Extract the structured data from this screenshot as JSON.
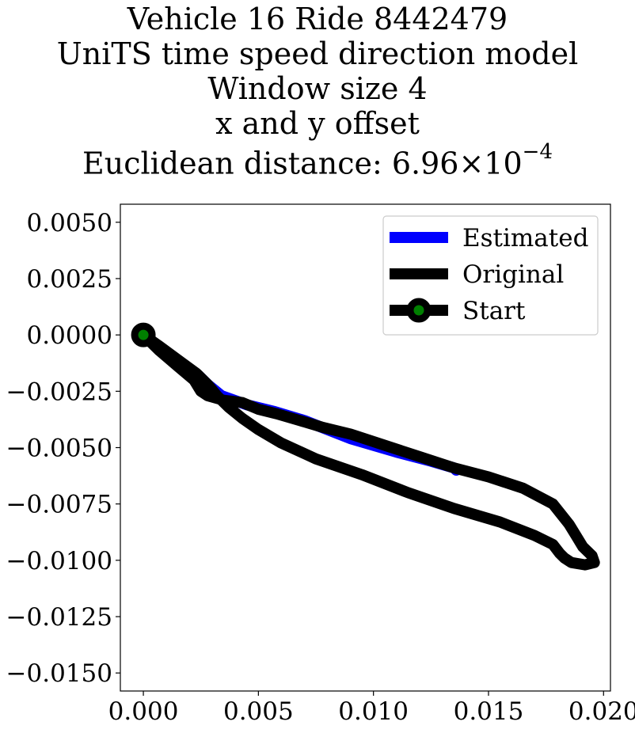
{
  "chart_data": {
    "type": "line",
    "title_lines": [
      "Vehicle 16 Ride 8442479",
      "UniTS time speed direction model",
      "Window size 4",
      "x and y offset",
      "Euclidean distance: 6.96×10",
      "−4"
    ],
    "xlabel": "",
    "ylabel": "",
    "xlim": [
      -0.001,
      0.0203
    ],
    "ylim": [
      -0.0158,
      0.0058
    ],
    "xticks": [
      0.0,
      0.005,
      0.01,
      0.015,
      0.02
    ],
    "xtick_labels": [
      "0.000",
      "0.005",
      "0.010",
      "0.015",
      "0.020"
    ],
    "yticks": [
      0.005,
      0.0025,
      0.0,
      -0.0025,
      -0.005,
      -0.0075,
      -0.01,
      -0.0125,
      -0.015
    ],
    "ytick_labels": [
      "0.0050",
      "0.0025",
      "0.0000",
      "−0.0025",
      "−0.0050",
      "−0.0075",
      "−0.0100",
      "−0.0125",
      "−0.0150"
    ],
    "grid": false,
    "legend_position": "upper right",
    "series": [
      {
        "name": "Estimated",
        "color": "#0000ff",
        "x": [
          0.0,
          0.0008,
          0.0017,
          0.0024,
          0.0028,
          0.0034,
          0.0045,
          0.0057,
          0.007,
          0.009,
          0.011,
          0.0125,
          0.0135,
          0.0136
        ],
        "y": [
          0.0,
          -0.0006,
          -0.0013,
          -0.0018,
          -0.0022,
          -0.0027,
          -0.0031,
          -0.0034,
          -0.0038,
          -0.0046,
          -0.0052,
          -0.0056,
          -0.0059,
          -0.006
        ]
      },
      {
        "name": "Original",
        "color": "#000000",
        "x": [
          0.0,
          0.0007,
          0.0015,
          0.0023,
          0.0028,
          0.0032,
          0.0037,
          0.0043,
          0.005,
          0.006,
          0.0075,
          0.0095,
          0.0115,
          0.0135,
          0.0155,
          0.017,
          0.0178,
          0.0181,
          0.0183,
          0.0186,
          0.0192,
          0.0196,
          0.0195,
          0.0191,
          0.0188,
          0.0185,
          0.0178,
          0.0165,
          0.015,
          0.0135,
          0.012,
          0.0105,
          0.009,
          0.0078,
          0.0068,
          0.0058,
          0.005,
          0.0043,
          0.0035,
          0.0028,
          0.0025,
          0.0022,
          0.0015,
          0.0007,
          0.0
        ],
        "y": [
          0.0,
          -0.0005,
          -0.0011,
          -0.0017,
          -0.0022,
          -0.0027,
          -0.0032,
          -0.0037,
          -0.0042,
          -0.0048,
          -0.0055,
          -0.0062,
          -0.007,
          -0.0077,
          -0.0083,
          -0.0089,
          -0.0093,
          -0.0097,
          -0.0099,
          -0.0101,
          -0.0102,
          -0.0101,
          -0.0098,
          -0.0094,
          -0.0089,
          -0.0084,
          -0.0075,
          -0.0068,
          -0.0063,
          -0.0059,
          -0.0054,
          -0.0049,
          -0.0044,
          -0.0041,
          -0.0038,
          -0.0035,
          -0.0033,
          -0.003,
          -0.0029,
          -0.0027,
          -0.0025,
          -0.002,
          -0.0014,
          -0.0007,
          0.0
        ]
      }
    ],
    "start_point": {
      "name": "Start",
      "x": 0.0,
      "y": 0.0,
      "marker_color": "#008000",
      "edge_color": "#000000"
    }
  }
}
